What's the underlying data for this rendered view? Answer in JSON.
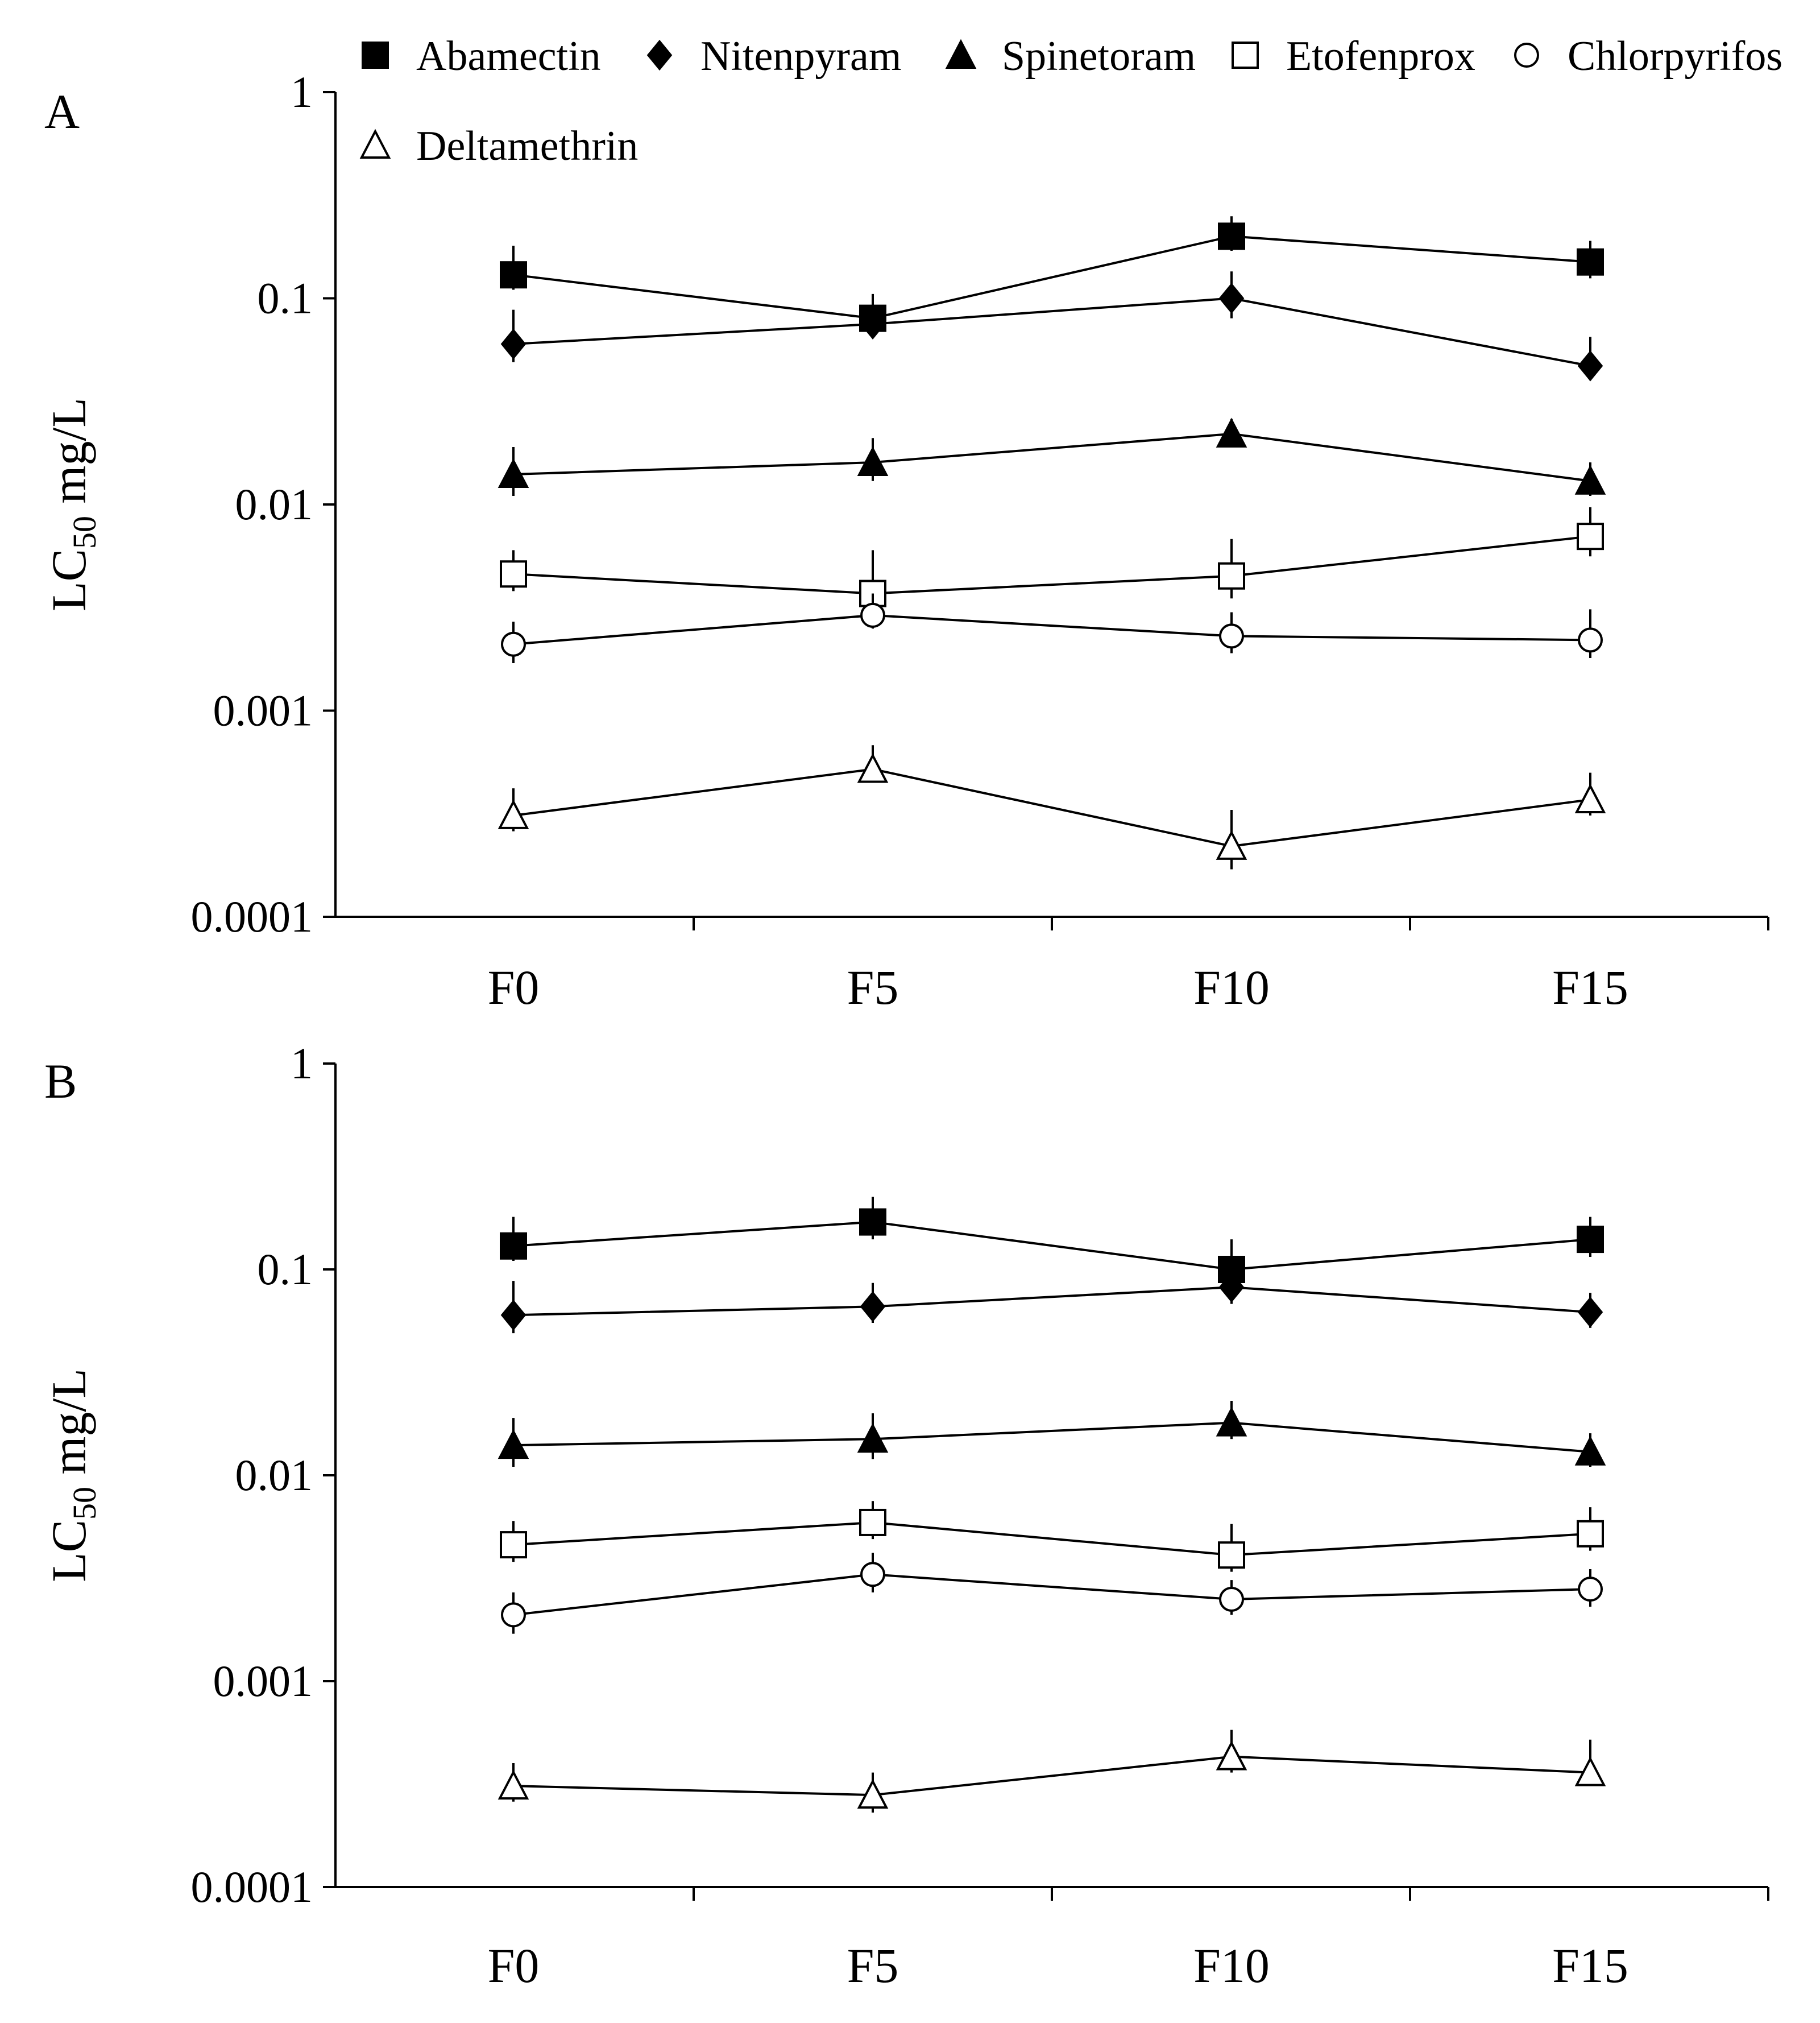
{
  "legend": {
    "items": [
      {
        "label": "Abamectin",
        "marker": "filled-square"
      },
      {
        "label": "Nitenpyram",
        "marker": "filled-diamond"
      },
      {
        "label": "Spinetoram",
        "marker": "filled-triangle"
      },
      {
        "label": "Etofenprox",
        "marker": "open-square"
      },
      {
        "label": "Chlorpyrifos",
        "marker": "open-circle"
      },
      {
        "label": "Deltamethrin",
        "marker": "open-triangle"
      }
    ]
  },
  "chart_data": [
    {
      "type": "line",
      "panel_label": "A",
      "ylabel_main": "LC",
      "ylabel_sub": "50",
      "ylabel_unit": " mg/L",
      "yscale": "log",
      "ylim": [
        0.0001,
        1
      ],
      "yticks": [
        "1",
        "0.1",
        "0.01",
        "0.001",
        "0.0001"
      ],
      "categories": [
        "F0",
        "F5",
        "F10",
        "F15"
      ],
      "series": [
        {
          "name": "Abamectin",
          "values": [
            0.13,
            0.08,
            0.2,
            0.15
          ],
          "err_hi": [
            0.18,
            0.105,
            0.25,
            0.19
          ],
          "err_lo": [
            0.11,
            0.07,
            0.17,
            0.125
          ]
        },
        {
          "name": "Nitenpyram",
          "values": [
            0.06,
            0.075,
            0.1,
            0.047
          ],
          "err_hi": [
            0.088,
            0.09,
            0.135,
            0.065
          ],
          "err_lo": [
            0.049,
            0.065,
            0.08,
            0.04
          ]
        },
        {
          "name": "Spinetoram",
          "values": [
            0.014,
            0.016,
            0.022,
            0.013
          ],
          "err_hi": [
            0.019,
            0.021,
            0.026,
            0.016
          ],
          "err_lo": [
            0.011,
            0.013,
            0.019,
            0.011
          ]
        },
        {
          "name": "Etofenprox",
          "values": [
            0.0046,
            0.0037,
            0.0045,
            0.007
          ],
          "err_hi": [
            0.006,
            0.006,
            0.0068,
            0.0097
          ],
          "err_lo": [
            0.0038,
            0.003,
            0.0035,
            0.0056
          ]
        },
        {
          "name": "Chlorpyrifos",
          "values": [
            0.0021,
            0.0029,
            0.0023,
            0.0022
          ],
          "err_hi": [
            0.0027,
            0.0037,
            0.003,
            0.0031
          ],
          "err_lo": [
            0.0017,
            0.0025,
            0.0019,
            0.0018
          ]
        },
        {
          "name": "Deltamethrin",
          "values": [
            0.00031,
            0.00052,
            0.00022,
            0.00037
          ],
          "err_hi": [
            0.00042,
            0.00068,
            0.00033,
            0.0005
          ],
          "err_lo": [
            0.00026,
            0.00045,
            0.00017,
            0.00031
          ]
        }
      ]
    },
    {
      "type": "line",
      "panel_label": "B",
      "ylabel_main": "LC",
      "ylabel_sub": "50",
      "ylabel_unit": " mg/L",
      "yscale": "log",
      "ylim": [
        0.0001,
        1
      ],
      "yticks": [
        "1",
        "0.1",
        "0.01",
        "0.001",
        "0.0001"
      ],
      "categories": [
        "F0",
        "F5",
        "F10",
        "F15"
      ],
      "series": [
        {
          "name": "Abamectin",
          "values": [
            0.13,
            0.17,
            0.1,
            0.14
          ],
          "err_hi": [
            0.18,
            0.225,
            0.14,
            0.18
          ],
          "err_lo": [
            0.11,
            0.14,
            0.082,
            0.115
          ]
        },
        {
          "name": "Nitenpyram",
          "values": [
            0.06,
            0.066,
            0.082,
            0.062
          ],
          "err_hi": [
            0.088,
            0.086,
            0.1,
            0.077
          ],
          "err_lo": [
            0.049,
            0.055,
            0.068,
            0.052
          ]
        },
        {
          "name": "Spinetoram",
          "values": [
            0.014,
            0.015,
            0.018,
            0.013
          ],
          "err_hi": [
            0.019,
            0.02,
            0.023,
            0.016
          ],
          "err_lo": [
            0.011,
            0.012,
            0.015,
            0.011
          ]
        },
        {
          "name": "Etofenprox",
          "values": [
            0.0046,
            0.0059,
            0.0041,
            0.0052
          ],
          "err_hi": [
            0.006,
            0.0075,
            0.0058,
            0.007
          ],
          "err_lo": [
            0.0038,
            0.0049,
            0.0034,
            0.0043
          ]
        },
        {
          "name": "Chlorpyrifos",
          "values": [
            0.0021,
            0.0033,
            0.0025,
            0.0028
          ],
          "err_hi": [
            0.0027,
            0.0042,
            0.0031,
            0.0035
          ],
          "err_lo": [
            0.0017,
            0.0027,
            0.0021,
            0.0023
          ]
        },
        {
          "name": "Deltamethrin",
          "values": [
            0.00031,
            0.00028,
            0.00043,
            0.00036
          ],
          "err_hi": [
            0.0004,
            0.00036,
            0.00058,
            0.00052
          ],
          "err_lo": [
            0.00026,
            0.00023,
            0.00036,
            0.00031
          ]
        }
      ]
    }
  ]
}
